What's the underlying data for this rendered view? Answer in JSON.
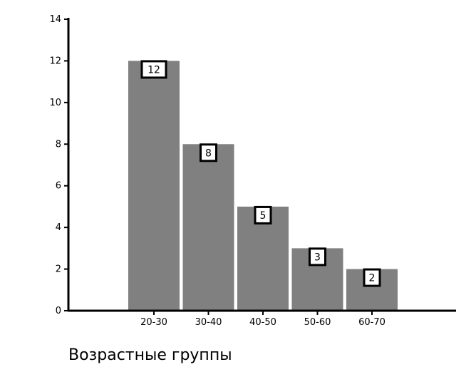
{
  "chart_data": {
    "type": "bar",
    "categories": [
      "20-30",
      "30-40",
      "40-50",
      "50-60",
      "60-70"
    ],
    "values": [
      12,
      8,
      5,
      3,
      2
    ],
    "data_labels": [
      "12",
      "8",
      "5",
      "3",
      "2"
    ],
    "title": "",
    "xlabel": "Возрастные группы",
    "ylabel": "",
    "ylim": [
      0,
      14
    ],
    "yticks": [
      0,
      2,
      4,
      6,
      8,
      10,
      12,
      14
    ],
    "grid": false,
    "legend": "none",
    "colors": {
      "bar": "#808080",
      "axis": "#000000",
      "label_box_border": "#000000",
      "label_box_fill": "#ffffff"
    }
  }
}
